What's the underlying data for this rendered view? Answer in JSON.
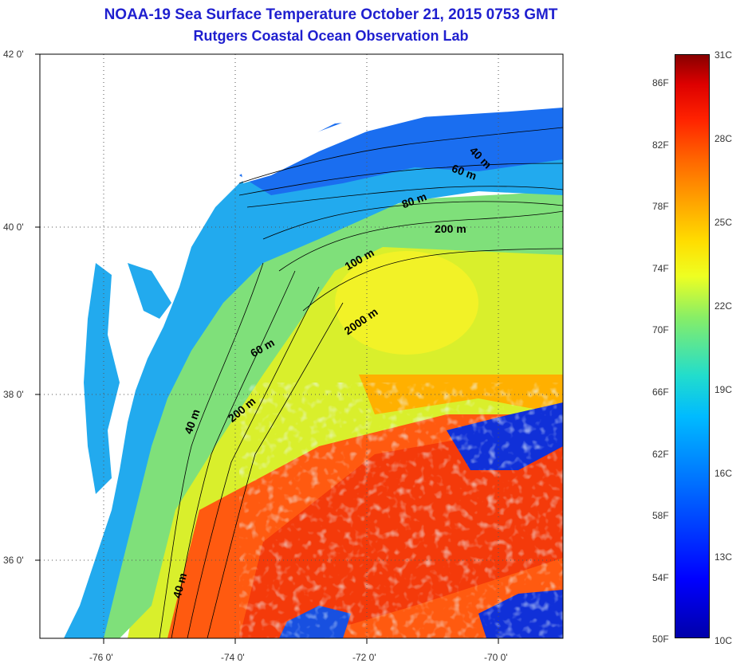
{
  "title_line1": "NOAA-19 Sea Surface Temperature October 21, 2015 0753 GMT",
  "title_line2": "Rutgers Coastal Ocean Observation Lab",
  "lat_labels": [
    "42 0'",
    "40 0'",
    "38 0'",
    "36 0'"
  ],
  "lon_labels": [
    "-76 0'",
    "-74 0'",
    "-72 0'",
    "-70 0'"
  ],
  "colorbar": {
    "fahrenheit_labels": [
      "86F",
      "82F",
      "78F",
      "74F",
      "70F",
      "66F",
      "62F",
      "58F",
      "54F",
      "50F"
    ],
    "celsius_labels": [
      "31C",
      "28C",
      "25C",
      "22C",
      "19C",
      "16C",
      "13C",
      "10C"
    ],
    "range_c": [
      10,
      31
    ]
  },
  "contour_labels": [
    "40 m",
    "60 m",
    "80 m",
    "200 m",
    "100 m",
    "2000 m",
    "60 m",
    "200 m",
    "40 m",
    "40 m"
  ],
  "colors": {
    "title": "#1f1fcf",
    "cold": "#0000ff",
    "cool": "#00bbff",
    "mild": "#eeff22",
    "warm": "#ff6600",
    "hot": "#dd0000",
    "land": "#ffffff"
  }
}
